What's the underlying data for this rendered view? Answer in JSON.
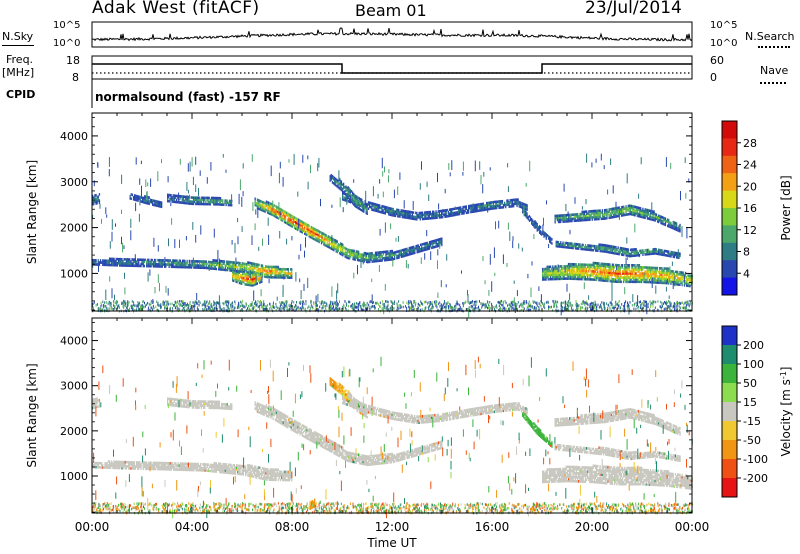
{
  "header": {
    "station": "Adak West (fitACF)",
    "beam": "Beam 01",
    "date": "23/Jul/2014"
  },
  "noise_panel": {
    "left_label": "N.Sky",
    "right_label": "N.Search",
    "left_ticks": [
      "10^5",
      "10^0"
    ],
    "right_ticks": [
      "10^5",
      "10^0"
    ]
  },
  "freq_panel": {
    "left_label_1": "Freq.",
    "left_label_2": "[MHz]",
    "right_label": "Nave",
    "left_ticks": [
      "18",
      "8"
    ],
    "right_ticks": [
      "60",
      "0"
    ]
  },
  "cpid": {
    "label": "CPID",
    "text": "normalsound (fast) -157 RF"
  },
  "chart_data": [
    {
      "type": "heatmap",
      "name": "power",
      "ylabel": "Slant Range [km]",
      "xlabel": "",
      "ylim": [
        180,
        4500
      ],
      "yticks": [
        "1000",
        "2000",
        "3000",
        "4000"
      ],
      "colorbar": {
        "label": "Power [dB]",
        "ticks": [
          "4",
          "8",
          "12",
          "16",
          "20",
          "24",
          "28"
        ],
        "colors": [
          "#1414e6",
          "#2848b0",
          "#2e7c84",
          "#4ca86a",
          "#7ccc3c",
          "#d8d818",
          "#f4a014",
          "#ee6414",
          "#e62814",
          "#d20a0a"
        ]
      },
      "bands": [
        {
          "t": [
            0,
            1.2,
            3,
            4.5,
            6,
            7,
            8
          ],
          "r": [
            1260,
            1250,
            1230,
            1210,
            1150,
            1050,
            1000
          ],
          "w": [
            120,
            150,
            160,
            170,
            220,
            260,
            180
          ],
          "v": [
            6,
            8,
            10,
            12,
            16,
            22,
            16
          ]
        },
        {
          "t": [
            5.6,
            6,
            6.4,
            6.8
          ],
          "r": [
            950,
            900,
            880,
            920
          ],
          "w": [
            200,
            260,
            280,
            180
          ],
          "v": [
            18,
            24,
            26,
            20
          ]
        },
        {
          "t": [
            6.5,
            7.2,
            8,
            8.8,
            9.6,
            10.2,
            11,
            12,
            13,
            14
          ],
          "r": [
            2550,
            2400,
            2150,
            1900,
            1650,
            1450,
            1350,
            1400,
            1550,
            1700
          ],
          "w": [
            200,
            240,
            260,
            260,
            240,
            220,
            200,
            180,
            160,
            140
          ],
          "v": [
            14,
            24,
            26,
            24,
            20,
            16,
            12,
            10,
            8,
            8
          ]
        },
        {
          "t": [
            3,
            4,
            5,
            5.6
          ],
          "r": [
            2650,
            2600,
            2580,
            2550
          ],
          "w": [
            140,
            160,
            140,
            120
          ],
          "v": [
            8,
            10,
            12,
            10
          ]
        },
        {
          "t": [
            1.5,
            2.2,
            2.8
          ],
          "r": [
            2700,
            2600,
            2500
          ],
          "w": [
            120,
            140,
            100
          ],
          "v": [
            6,
            8,
            6
          ]
        },
        {
          "t": [
            10,
            11,
            12,
            13,
            14,
            15,
            16,
            17,
            17.4
          ],
          "r": [
            2700,
            2500,
            2350,
            2250,
            2300,
            2400,
            2500,
            2550,
            2450
          ],
          "w": [
            160,
            160,
            160,
            140,
            140,
            140,
            160,
            140,
            120
          ],
          "v": [
            10,
            8,
            8,
            8,
            8,
            8,
            10,
            8,
            8
          ]
        },
        {
          "t": [
            17.2,
            17.8,
            18.4
          ],
          "r": [
            2400,
            2000,
            1700
          ],
          "w": [
            120,
            140,
            120
          ],
          "v": [
            8,
            8,
            6
          ]
        },
        {
          "t": [
            9.5,
            10,
            10.5,
            11
          ],
          "r": [
            3100,
            2900,
            2600,
            2400
          ],
          "w": [
            140,
            200,
            260,
            200
          ],
          "v": [
            8,
            10,
            12,
            10
          ]
        },
        {
          "t": [
            18,
            19,
            20,
            21,
            22,
            23,
            24
          ],
          "r": [
            1000,
            1050,
            1050,
            1000,
            1000,
            950,
            850
          ],
          "w": [
            260,
            320,
            360,
            360,
            360,
            320,
            260
          ],
          "v": [
            14,
            18,
            22,
            24,
            22,
            20,
            18
          ]
        },
        {
          "t": [
            18.5,
            19.5,
            20.5,
            21.5,
            22.5,
            23.5
          ],
          "r": [
            2200,
            2250,
            2300,
            2400,
            2250,
            2000
          ],
          "w": [
            160,
            180,
            200,
            200,
            180,
            160
          ],
          "v": [
            10,
            12,
            14,
            14,
            12,
            10
          ]
        },
        {
          "t": [
            18.5,
            19.5,
            20.5,
            21.5,
            22.5,
            23.5
          ],
          "r": [
            1650,
            1600,
            1550,
            1450,
            1500,
            1400
          ],
          "w": [
            100,
            120,
            140,
            140,
            120,
            120
          ],
          "v": [
            8,
            10,
            12,
            12,
            10,
            8
          ]
        },
        {
          "t": [
            0,
            0.3
          ],
          "r": [
            2600,
            2650
          ],
          "w": [
            180,
            200
          ],
          "v": [
            8,
            8
          ]
        }
      ]
    },
    {
      "type": "heatmap",
      "name": "velocity",
      "ylabel": "Slant Range [km]",
      "xlabel": "Time UT",
      "ylim": [
        180,
        4500
      ],
      "xlim": [
        0,
        24
      ],
      "xticks": [
        "00:00",
        "04:00",
        "08:00",
        "12:00",
        "16:00",
        "20:00",
        "00:00"
      ],
      "yticks": [
        "1000",
        "2000",
        "3000",
        "4000"
      ],
      "colorbar": {
        "label": "Velocity [m s^-1]",
        "ticks": [
          "200",
          "100",
          "50",
          "15",
          "-15",
          "-50",
          "-100",
          "-200"
        ],
        "colors": [
          "#1e32c8",
          "#1e8c6e",
          "#3cb43c",
          "#8cdc50",
          "#c8c8c0",
          "#f0c832",
          "#f09614",
          "#f05014",
          "#e61414"
        ]
      },
      "bands": [
        {
          "t": [
            0,
            1.2,
            3,
            4.5,
            6,
            7,
            8
          ],
          "r": [
            1260,
            1250,
            1230,
            1210,
            1150,
            1050,
            1000
          ],
          "w": [
            120,
            150,
            160,
            170,
            220,
            260,
            180
          ],
          "v": [
            0,
            0,
            0,
            0,
            0,
            0,
            0
          ]
        },
        {
          "t": [
            6.5,
            7.2,
            8,
            8.8,
            9.6,
            10.2,
            11,
            12,
            13,
            14
          ],
          "r": [
            2550,
            2400,
            2150,
            1900,
            1650,
            1450,
            1350,
            1400,
            1550,
            1700
          ],
          "w": [
            200,
            240,
            260,
            260,
            240,
            220,
            200,
            180,
            160,
            140
          ],
          "v": [
            0,
            0,
            0,
            0,
            0,
            0,
            0,
            0,
            0,
            0
          ]
        },
        {
          "t": [
            3,
            4,
            5,
            5.6
          ],
          "r": [
            2650,
            2600,
            2580,
            2550
          ],
          "w": [
            140,
            160,
            140,
            120
          ],
          "v": [
            0,
            0,
            0,
            0
          ]
        },
        {
          "t": [
            10,
            11,
            12,
            13,
            14,
            15,
            16,
            17,
            17.4
          ],
          "r": [
            2700,
            2500,
            2350,
            2250,
            2300,
            2400,
            2500,
            2550,
            2450
          ],
          "w": [
            160,
            160,
            160,
            140,
            140,
            140,
            160,
            140,
            120
          ],
          "v": [
            0,
            0,
            0,
            0,
            0,
            0,
            0,
            0,
            0
          ]
        },
        {
          "t": [
            17.2,
            17.8,
            18.4
          ],
          "r": [
            2400,
            2000,
            1700
          ],
          "w": [
            120,
            140,
            120
          ],
          "v": [
            60,
            60,
            50
          ]
        },
        {
          "t": [
            9.5,
            10,
            10.5,
            11
          ],
          "r": [
            3100,
            2900,
            2600,
            2400
          ],
          "w": [
            140,
            200,
            260,
            200
          ],
          "v": [
            -40,
            -30,
            0,
            0
          ]
        },
        {
          "t": [
            18,
            19,
            20,
            21,
            22,
            23,
            24
          ],
          "r": [
            1000,
            1050,
            1050,
            1000,
            1000,
            950,
            850
          ],
          "w": [
            260,
            320,
            360,
            360,
            360,
            320,
            260
          ],
          "v": [
            0,
            0,
            0,
            0,
            0,
            0,
            0
          ]
        },
        {
          "t": [
            18.5,
            19.5,
            20.5,
            21.5,
            22.5,
            23.5
          ],
          "r": [
            2200,
            2250,
            2300,
            2400,
            2250,
            2000
          ],
          "w": [
            160,
            180,
            200,
            200,
            180,
            160
          ],
          "v": [
            0,
            0,
            0,
            0,
            0,
            0
          ]
        },
        {
          "t": [
            18.5,
            19.5,
            20.5,
            21.5,
            22.5,
            23.5
          ],
          "r": [
            1650,
            1600,
            1550,
            1450,
            1500,
            1400
          ],
          "w": [
            100,
            120,
            140,
            140,
            120,
            120
          ],
          "v": [
            0,
            0,
            0,
            0,
            0,
            0
          ]
        },
        {
          "t": [
            8.7,
            8.9
          ],
          "r": [
            350,
            420
          ],
          "w": [
            150,
            150
          ],
          "v": [
            -60,
            -60
          ]
        },
        {
          "t": [
            0,
            0.3
          ],
          "r": [
            2600,
            2650
          ],
          "w": [
            180,
            200
          ],
          "v": [
            0,
            0
          ]
        }
      ]
    }
  ]
}
